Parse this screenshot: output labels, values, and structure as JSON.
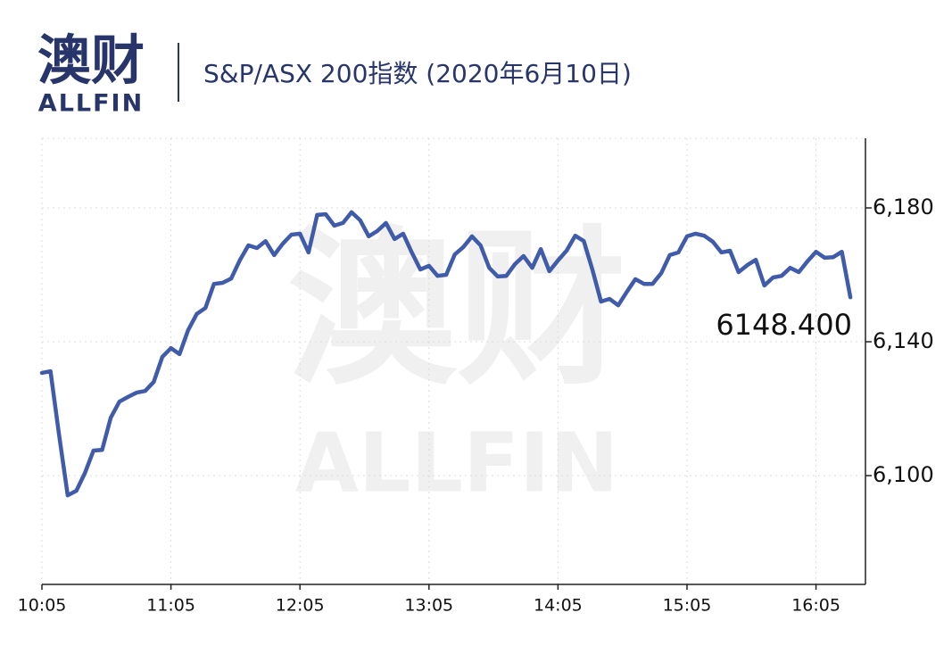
{
  "logo": {
    "cn": "澳财",
    "en": "ALLFIN"
  },
  "watermark": {
    "cn": "澳财",
    "en": "ALLFIN"
  },
  "chart_data": {
    "type": "line",
    "title": "S&P/ASX 200指数 (2020年6月10日)",
    "annotation": "6148.400",
    "x": [
      "10:05",
      "10:09",
      "10:13",
      "10:17",
      "10:21",
      "10:25",
      "10:29",
      "10:33",
      "10:37",
      "10:41",
      "10:45",
      "10:49",
      "10:53",
      "10:57",
      "11:01",
      "11:05",
      "11:09",
      "11:13",
      "11:17",
      "11:21",
      "11:25",
      "11:29",
      "11:33",
      "11:37",
      "11:41",
      "11:45",
      "11:49",
      "11:53",
      "11:57",
      "12:01",
      "12:05",
      "12:09",
      "12:13",
      "12:17",
      "12:21",
      "12:25",
      "12:29",
      "12:33",
      "12:37",
      "12:41",
      "12:45",
      "12:49",
      "12:53",
      "12:57",
      "13:01",
      "13:05",
      "13:09",
      "13:13",
      "13:17",
      "13:21",
      "13:25",
      "13:29",
      "13:33",
      "13:37",
      "13:41",
      "13:45",
      "13:49",
      "13:53",
      "13:57",
      "14:01",
      "14:05",
      "14:09",
      "14:13",
      "14:17",
      "14:21",
      "14:25",
      "14:29",
      "14:33",
      "14:37",
      "14:41",
      "14:45",
      "14:49",
      "14:53",
      "14:57",
      "15:01",
      "15:05",
      "15:09",
      "15:13",
      "15:17",
      "15:21",
      "15:25",
      "15:29",
      "15:33",
      "15:37",
      "15:41",
      "15:45",
      "15:49",
      "15:53",
      "15:57",
      "16:01",
      "16:05",
      "16:09",
      "16:13",
      "16:17",
      "16:21"
    ],
    "series": [
      {
        "name": "S&P/ASX 200",
        "color": "#3f5ba9",
        "values": [
          6130.7,
          6131.2,
          6112.0,
          6094.1,
          6095.5,
          6100.8,
          6107.5,
          6107.7,
          6117.3,
          6122.1,
          6123.5,
          6124.8,
          6125.3,
          6128.0,
          6135.5,
          6138.1,
          6136.3,
          6143.5,
          6148.3,
          6150.1,
          6157.3,
          6157.6,
          6158.9,
          6164.3,
          6168.8,
          6168.0,
          6170.1,
          6165.9,
          6169.3,
          6172.0,
          6172.3,
          6166.7,
          6177.9,
          6178.1,
          6174.7,
          6175.5,
          6178.7,
          6176.3,
          6171.5,
          6173.1,
          6175.5,
          6170.7,
          6172.3,
          6166.7,
          6161.6,
          6162.7,
          6159.7,
          6160.0,
          6166.1,
          6168.3,
          6171.5,
          6168.8,
          6162.1,
          6159.5,
          6159.7,
          6163.2,
          6165.6,
          6162.1,
          6167.7,
          6161.1,
          6164.3,
          6167.2,
          6171.7,
          6170.1,
          6161.6,
          6152.0,
          6152.8,
          6150.9,
          6154.9,
          6158.7,
          6157.3,
          6157.3,
          6160.5,
          6165.9,
          6166.7,
          6171.5,
          6172.3,
          6171.7,
          6169.9,
          6166.7,
          6167.2,
          6160.8,
          6162.9,
          6164.5,
          6156.8,
          6159.2,
          6159.7,
          6162.1,
          6160.8,
          6164.0,
          6166.9,
          6165.1,
          6165.3,
          6166.9,
          6153.3
        ]
      }
    ],
    "xlim": [
      "10:05",
      "16:28"
    ],
    "xticks": [
      "10:05",
      "11:05",
      "12:05",
      "13:05",
      "14:05",
      "15:05",
      "16:05"
    ],
    "ylim": [
      6067.5,
      6200.8
    ],
    "yticks": [
      {
        "value": 6100,
        "label": "6,100"
      },
      {
        "value": 6140,
        "label": "6,140"
      },
      {
        "value": 6180,
        "label": "6,180"
      }
    ],
    "y_axis_side": "right",
    "grid": true
  }
}
